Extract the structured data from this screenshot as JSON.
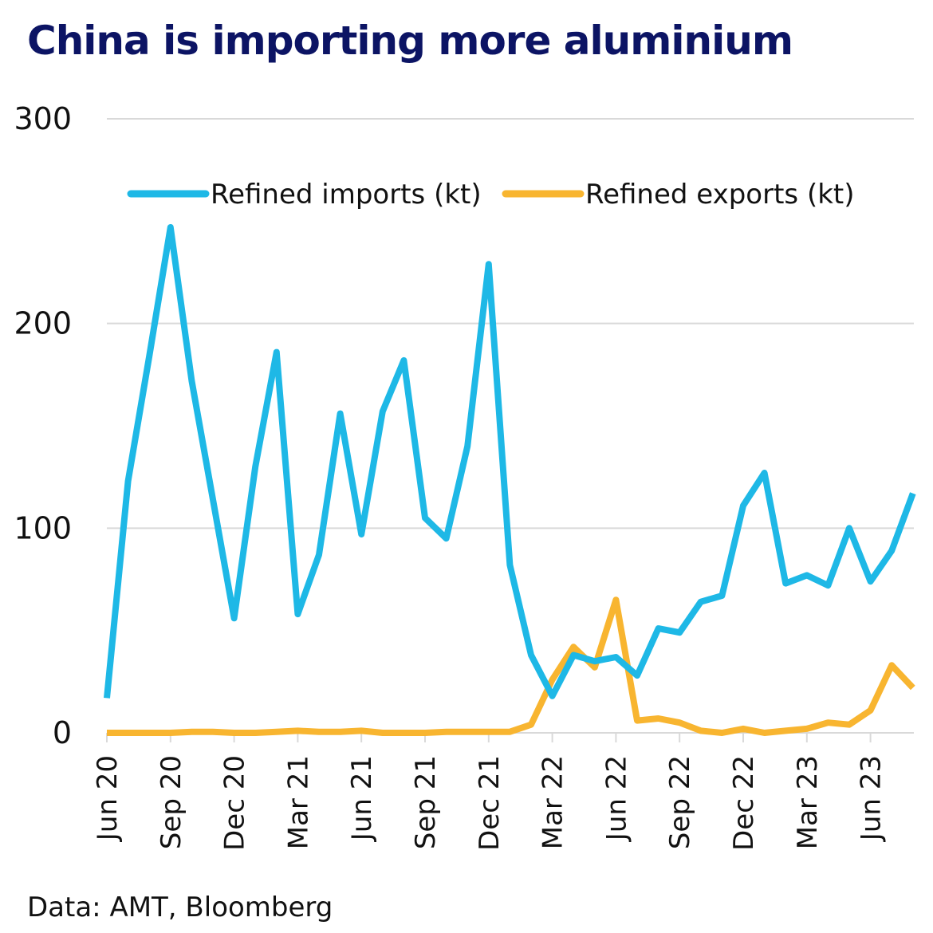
{
  "chart_data": {
    "type": "line",
    "title": "China is importing more aluminium",
    "source": "Data: AMT, Bloomberg",
    "xlabel": "",
    "ylabel": "",
    "ylim": [
      0,
      300
    ],
    "yticks": [
      "0",
      "100",
      "200",
      "300"
    ],
    "grid": true,
    "legend_position": "top",
    "x": [
      "Jun 20",
      "Jul 20",
      "Aug 20",
      "Sep 20",
      "Oct 20",
      "Nov 20",
      "Dec 20",
      "Jan 21",
      "Feb 21",
      "Mar 21",
      "Apr 21",
      "May 21",
      "Jun 21",
      "Jul 21",
      "Aug 21",
      "Sep 21",
      "Oct 21",
      "Nov 21",
      "Dec 21",
      "Jan 22",
      "Feb 22",
      "Mar 22",
      "Apr 22",
      "May 22",
      "Jun 22",
      "Jul 22",
      "Aug 22",
      "Sep 22",
      "Oct 22",
      "Nov 22",
      "Dec 22",
      "Jan 23",
      "Feb 23",
      "Mar 23",
      "Apr 23",
      "May 23",
      "Jun 23",
      "Jul 23",
      "Aug 23"
    ],
    "xtick_labels": [
      "Jun 20",
      "Sep 20",
      "Dec 20",
      "Mar 21",
      "Jun 21",
      "Sep 21",
      "Dec 21",
      "Mar 22",
      "Jun 22",
      "Sep 22",
      "Dec 22",
      "Mar 23",
      "Jun 23"
    ],
    "series": [
      {
        "name": "Refined imports (kt)",
        "color": "#1eb8e6",
        "values": [
          17,
          123,
          184,
          247,
          172,
          114,
          56,
          130,
          186,
          58,
          87,
          156,
          97,
          157,
          182,
          105,
          95,
          140,
          229,
          82,
          38,
          18,
          38,
          35,
          37,
          28,
          51,
          49,
          64,
          67,
          111,
          127,
          73,
          77,
          72,
          100,
          74,
          89,
          117
        ]
      },
      {
        "name": "Refined exports (kt)",
        "color": "#f8b530",
        "values": [
          0,
          0,
          0,
          0,
          0.5,
          0.5,
          0,
          0,
          0.5,
          1,
          0.5,
          0.5,
          1,
          0,
          0,
          0,
          0.5,
          0.5,
          0.5,
          0.5,
          4,
          26,
          42,
          32,
          65,
          6,
          7,
          5,
          1,
          0,
          2,
          0,
          1,
          2,
          5,
          4,
          11,
          33,
          22
        ]
      }
    ]
  }
}
